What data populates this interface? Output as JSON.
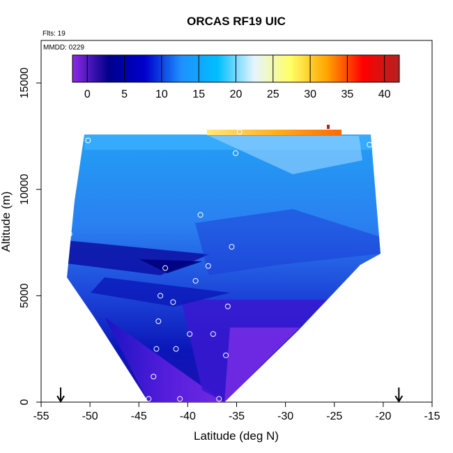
{
  "chart_data": {
    "type": "heatmap",
    "title": "ORCAS RF19 UIC",
    "flight_label": "Flts: 19",
    "date_label": "MMDD: 0229",
    "xlabel": "Latitude (deg N)",
    "ylabel": "Altitude (m)",
    "xlim": [
      -55,
      -15
    ],
    "ylim": [
      0,
      17000
    ],
    "x_ticks": [
      "-55",
      "-50",
      "-45",
      "-40",
      "-35",
      "-30",
      "-25",
      "-20",
      "-15"
    ],
    "y_ticks": [
      "0",
      "5000",
      "10000",
      "15000"
    ],
    "colorbar": {
      "range": [
        -2,
        42
      ],
      "ticks": [
        "0",
        "5",
        "10",
        "15",
        "20",
        "25",
        "30",
        "35",
        "40"
      ],
      "colors": [
        "#8a2be2",
        "#00008b",
        "#0000cd",
        "#1e90ff",
        "#00bfff",
        "#e6f4ff",
        "#ffff66",
        "#ffa500",
        "#ff0000",
        "#b22222"
      ]
    },
    "markers_latitude": [
      -53,
      -18.4
    ],
    "sample_points": [
      {
        "x": -50.2,
        "y": 12300
      },
      {
        "x": -34.7,
        "y": 12700
      },
      {
        "x": -35.1,
        "y": 11700
      },
      {
        "x": -21.4,
        "y": 12100
      },
      {
        "x": -52.1,
        "y": 7900
      },
      {
        "x": -38.7,
        "y": 8800
      },
      {
        "x": -35.5,
        "y": 7300
      },
      {
        "x": -42.3,
        "y": 6300
      },
      {
        "x": -37.9,
        "y": 6400
      },
      {
        "x": -39.2,
        "y": 5700
      },
      {
        "x": -42.8,
        "y": 5000
      },
      {
        "x": -41.5,
        "y": 4700
      },
      {
        "x": -35.9,
        "y": 4500
      },
      {
        "x": -43.0,
        "y": 3800
      },
      {
        "x": -37.4,
        "y": 3200
      },
      {
        "x": -39.8,
        "y": 3200
      },
      {
        "x": -43.2,
        "y": 2500
      },
      {
        "x": -41.2,
        "y": 2500
      },
      {
        "x": -36.1,
        "y": 2200
      },
      {
        "x": -43.5,
        "y": 1200
      },
      {
        "x": -44.0,
        "y": 150
      },
      {
        "x": -40.8,
        "y": 150
      },
      {
        "x": -36.8,
        "y": 150
      }
    ]
  }
}
